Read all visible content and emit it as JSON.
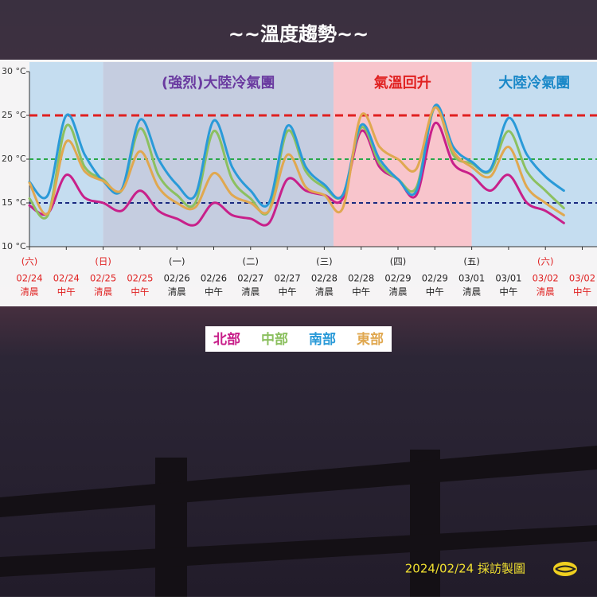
{
  "chart_data": {
    "type": "line",
    "title": "~~溫度趨勢~~",
    "categories": [
      "02/24",
      null,
      "02/24",
      null,
      "02/25",
      null,
      "02/25",
      null,
      "02/26",
      null,
      "02/26",
      null,
      "02/27",
      null,
      "02/27",
      null,
      "02/28",
      null,
      "02/28",
      null,
      "02/29",
      null,
      "02/29",
      null,
      "03/01",
      null,
      "03/01",
      null,
      "03/02",
      null,
      "03/02"
    ],
    "periods": [
      "清晨",
      null,
      "中午",
      null,
      "清晨",
      null,
      "中午",
      null,
      "清晨",
      null,
      "中午",
      null,
      "清晨",
      null,
      "中午",
      null,
      "清晨",
      null,
      "中午",
      null,
      "清晨",
      null,
      "中午",
      null,
      "清晨",
      null,
      "中午",
      null,
      "清晨",
      null,
      "中午"
    ],
    "weekdays": [
      "(六)",
      null,
      null,
      null,
      "(日)",
      null,
      null,
      null,
      "(一)",
      null,
      null,
      null,
      "(二)",
      null,
      null,
      null,
      "(三)",
      null,
      null,
      null,
      "(四)",
      null,
      null,
      null,
      "(五)",
      null,
      null,
      null,
      "(六)",
      null,
      null
    ],
    "x_label_colors": [
      "#e02020",
      null,
      "#e02020",
      null,
      "#e02020",
      null,
      "#e02020",
      null,
      "#222",
      null,
      "#222",
      null,
      "#222",
      null,
      "#222",
      null,
      "#222",
      null,
      "#222",
      null,
      "#222",
      null,
      "#222",
      null,
      "#222",
      null,
      "#222",
      null,
      "#e02020",
      null,
      "#e02020"
    ],
    "ylim": [
      10,
      30
    ],
    "yticks": [
      {
        "value": 10,
        "label": "10 °C"
      },
      {
        "value": 15,
        "label": "15 °C"
      },
      {
        "value": 20,
        "label": "20 °C"
      },
      {
        "value": 25,
        "label": "25 °C"
      },
      {
        "value": 30,
        "label": "30 °C"
      }
    ],
    "ref_lines": [
      {
        "value": 25,
        "color": "#e02020"
      },
      {
        "value": 20,
        "color": "#2aa84a"
      },
      {
        "value": 15,
        "color": "#1a2a80"
      }
    ],
    "regions": [
      {
        "from": 0,
        "to": 4,
        "color": "#bcd8ee"
      },
      {
        "from": 4,
        "to": 16.5,
        "color": "#bcc6dc",
        "label": "(強烈)大陸冷氣團",
        "label_color": "#6a3aa0"
      },
      {
        "from": 16.5,
        "to": 24,
        "color": "#f8bcc4",
        "label": "氣溫回升",
        "label_color": "#e02020"
      },
      {
        "from": 24,
        "to": 31,
        "color": "#bcd8ee",
        "label": "大陸冷氣團",
        "label_color": "#1a88c8"
      }
    ],
    "series": [
      {
        "name": "北部",
        "color": "#c8208a",
        "values": [
          14.7,
          13.8,
          18.2,
          15.6,
          15,
          14.1,
          16.4,
          14.1,
          13.2,
          12.5,
          15,
          13.6,
          13.2,
          12.7,
          17.7,
          16.4,
          15.9,
          15.5,
          23.2,
          19.1,
          17.7,
          15.9,
          24.1,
          19.5,
          18.2,
          16.4,
          18.2,
          15,
          14.1,
          12.7,
          null
        ]
      },
      {
        "name": "中部",
        "color": "#8cc060",
        "values": [
          15.5,
          13.6,
          23.8,
          19.1,
          17.7,
          16.4,
          23.5,
          18.2,
          15.9,
          15,
          23.2,
          17.7,
          15.5,
          14.1,
          23.2,
          18.6,
          16.8,
          15.9,
          23.6,
          19.5,
          17.7,
          16.8,
          25.9,
          20.5,
          19.5,
          18.6,
          23.2,
          18.6,
          16.4,
          14.4,
          null
        ]
      },
      {
        "name": "南部",
        "color": "#2a9ad8",
        "values": [
          17.4,
          15.9,
          25,
          20.5,
          17.5,
          16.5,
          24.5,
          20,
          17.1,
          15.9,
          24.4,
          19.1,
          16.4,
          15,
          23.8,
          19.1,
          17.1,
          15.9,
          23.9,
          20,
          17.7,
          16.4,
          26.1,
          21.4,
          19.7,
          18.8,
          24.7,
          20.5,
          18,
          16.4,
          null
        ]
      },
      {
        "name": "東部",
        "color": "#e0a850",
        "values": [
          17.3,
          13.8,
          22,
          18.6,
          17.5,
          16.4,
          20.9,
          16.8,
          15,
          14.5,
          18.4,
          15.9,
          15,
          14.1,
          20.5,
          16.8,
          15.9,
          14.4,
          25,
          21.4,
          20,
          18.9,
          25.9,
          20.9,
          19.1,
          18,
          21.4,
          16.8,
          15,
          13.6,
          null
        ]
      }
    ],
    "credit": "2024/02/24 採訪製圖"
  }
}
